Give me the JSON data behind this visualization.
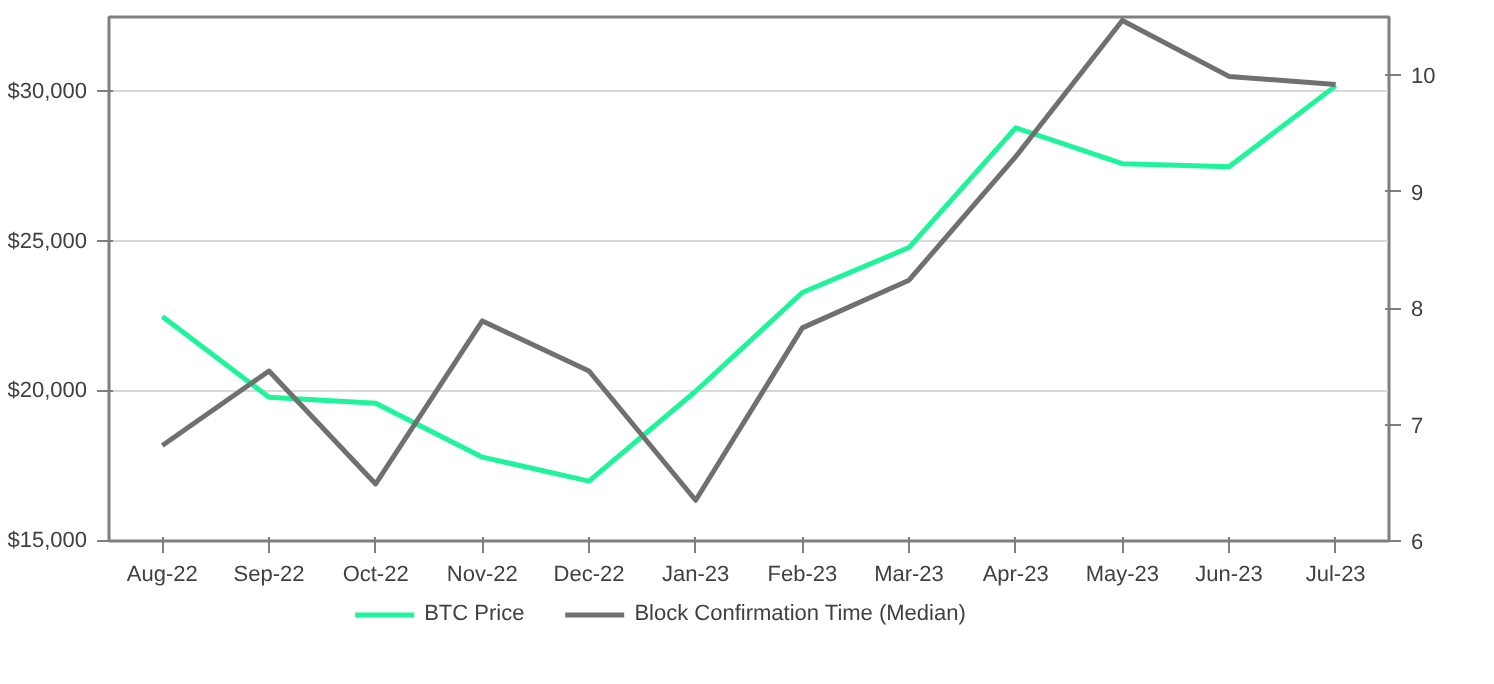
{
  "chart_data": {
    "type": "line",
    "categories": [
      "Aug-22",
      "Sep-22",
      "Oct-22",
      "Nov-22",
      "Dec-22",
      "Jan-23",
      "Feb-23",
      "Mar-23",
      "Apr-23",
      "May-23",
      "Jun-23",
      "Jul-23"
    ],
    "series": [
      {
        "name": "BTC Price",
        "color": "#1ef59a",
        "values": [
          22500,
          19800,
          19600,
          17800,
          17000,
          20000,
          23300,
          24800,
          28800,
          27600,
          27500,
          30200
        ]
      },
      {
        "name": "Block Confirmation Time (Median)",
        "color": "#6f716e",
        "axis": "y2",
        "values": [
          6.82,
          7.46,
          6.49,
          7.89,
          7.46,
          6.35,
          7.83,
          8.24,
          9.3,
          10.47,
          9.99,
          9.92
        ]
      }
    ],
    "ylim": [
      15000,
      32500
    ],
    "yticks": [
      {
        "value": 15000,
        "label": "$15,000"
      },
      {
        "value": 20000,
        "label": "$20,000"
      },
      {
        "value": 25000,
        "label": "$25,000"
      },
      {
        "value": 30000,
        "label": "$30,000"
      }
    ],
    "y2lim": [
      6,
      10.5
    ],
    "y2ticks": [
      6,
      7,
      8,
      9,
      10
    ],
    "grid": "y",
    "legend": "bottom",
    "marker": "none",
    "line_style": "solid"
  }
}
